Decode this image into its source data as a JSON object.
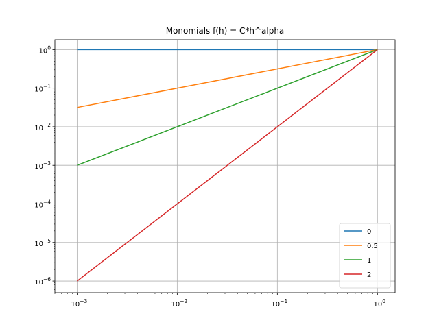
{
  "chart_data": {
    "type": "line",
    "title": "Monomials f(h) = C*h^alpha",
    "xlabel": "",
    "ylabel": "",
    "xscale": "log",
    "yscale": "log",
    "grid": true,
    "legend_position": "lower-right",
    "x": [
      0.001,
      1
    ],
    "xlim": [
      0.0006,
      1.5
    ],
    "ylim": [
      5e-07,
      1.8
    ],
    "x_ticks": [
      {
        "value": 0.001,
        "base": "10",
        "exp": "−3"
      },
      {
        "value": 0.01,
        "base": "10",
        "exp": "−2"
      },
      {
        "value": 0.1,
        "base": "10",
        "exp": "−1"
      },
      {
        "value": 1,
        "base": "10",
        "exp": "0"
      }
    ],
    "y_ticks": [
      {
        "value": 1e-06,
        "base": "10",
        "exp": "−6"
      },
      {
        "value": 1e-05,
        "base": "10",
        "exp": "−5"
      },
      {
        "value": 0.0001,
        "base": "10",
        "exp": "−4"
      },
      {
        "value": 0.001,
        "base": "10",
        "exp": "−3"
      },
      {
        "value": 0.01,
        "base": "10",
        "exp": "−2"
      },
      {
        "value": 0.1,
        "base": "10",
        "exp": "−1"
      },
      {
        "value": 1,
        "base": "10",
        "exp": "0"
      }
    ],
    "series": [
      {
        "name": "0",
        "color": "#1f77b4",
        "values": [
          1,
          1
        ]
      },
      {
        "name": "0.5",
        "color": "#ff7f0e",
        "values": [
          0.0316,
          1
        ]
      },
      {
        "name": "1",
        "color": "#2ca02c",
        "values": [
          0.001,
          1
        ]
      },
      {
        "name": "2",
        "color": "#d62728",
        "values": [
          1e-06,
          1
        ]
      }
    ]
  }
}
